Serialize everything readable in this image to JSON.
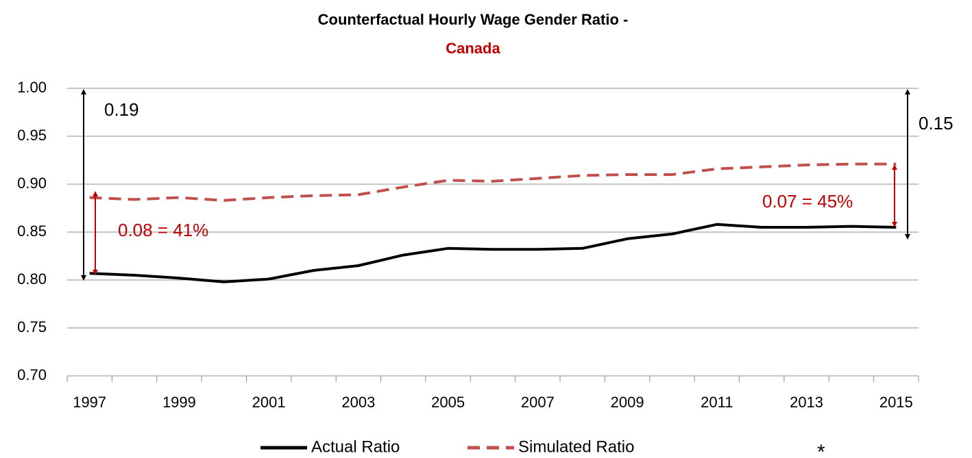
{
  "chart_data": {
    "type": "line",
    "title": "Counterfactual Hourly Wage Gender Ratio -",
    "subtitle": "Canada",
    "categories": [
      "1997",
      null,
      "1999",
      null,
      "2001",
      null,
      "2003",
      null,
      "2005",
      null,
      "2007",
      null,
      "2009",
      null,
      "2011",
      null,
      "2013",
      null,
      "2015"
    ],
    "series": [
      {
        "name": "Actual Ratio",
        "color": "#000000",
        "dash": false,
        "values": [
          0.807,
          0.805,
          0.802,
          0.798,
          0.801,
          0.81,
          0.815,
          0.826,
          0.833,
          0.832,
          0.832,
          0.833,
          0.843,
          0.848,
          0.858,
          0.855,
          0.855,
          0.856,
          0.855
        ]
      },
      {
        "name": "Simulated Ratio",
        "color": "#c0504d",
        "dash": true,
        "values": [
          0.886,
          0.884,
          0.886,
          0.883,
          0.886,
          0.888,
          0.889,
          0.897,
          0.904,
          0.903,
          0.906,
          0.909,
          0.91,
          0.91,
          0.916,
          0.918,
          0.92,
          0.921,
          0.921
        ]
      }
    ],
    "ylim": [
      0.7,
      1.0
    ],
    "yticks": [
      {
        "value": 0.7,
        "label": "0.70"
      },
      0.75,
      {
        "value": 0.8,
        "label": "0.80"
      },
      0.85,
      {
        "value": 0.9,
        "label": "0.90"
      },
      0.95,
      {
        "value": 1.0,
        "label": "1.00"
      }
    ],
    "grid": true,
    "legend": "bottom",
    "annotations": [
      "0.19",
      "0.15",
      "0.08 = 41%",
      "0.07 = 45%"
    ],
    "footnote": "*"
  }
}
